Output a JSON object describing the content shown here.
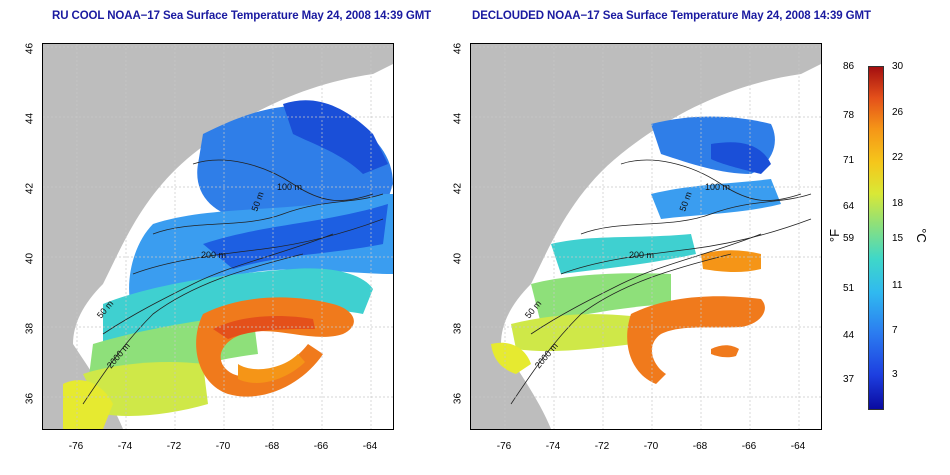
{
  "titles": {
    "left": "RU COOL NOAA−17 Sea Surface Temperature May 24, 2008 14:39 GMT",
    "right": "DECLOUDED NOAA−17 Sea Surface Temperature May 24, 2008 14:39 GMT"
  },
  "axes": {
    "lat_ticks": [
      "46",
      "44",
      "42",
      "40",
      "38",
      "36"
    ],
    "lon_ticks": [
      "-76",
      "-74",
      "-72",
      "-70",
      "-68",
      "-66",
      "-64"
    ]
  },
  "contours": {
    "labels": [
      "100 m",
      "50 m",
      "200 m",
      "50 m",
      "2000 m"
    ]
  },
  "colorbar": {
    "fahrenheit": [
      "86",
      "78",
      "71",
      "64",
      "59",
      "51",
      "44",
      "37"
    ],
    "celsius": [
      "30",
      "26",
      "22",
      "18",
      "15",
      "11",
      "7",
      "3"
    ],
    "unit_f": "°F",
    "unit_c": "°C"
  },
  "colors": {
    "land": "#bdbdbd",
    "grid": "#c8c8c8",
    "title": "#1a1aa0"
  }
}
